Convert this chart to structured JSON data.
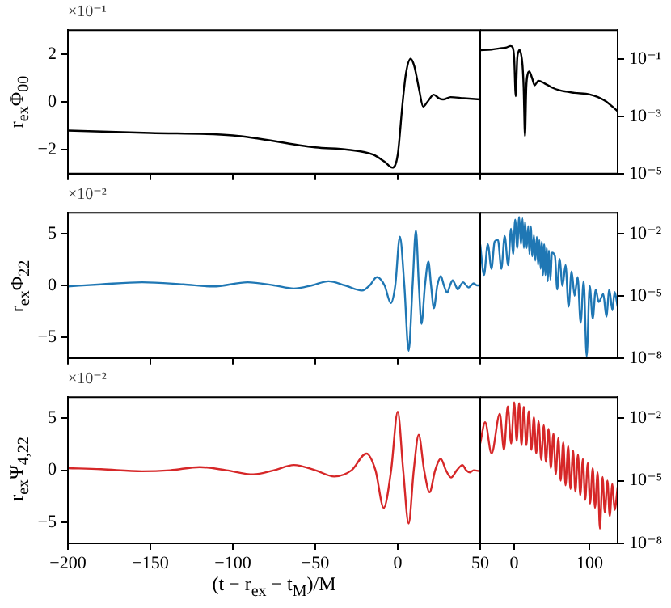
{
  "chart_data": [
    {
      "type": "line",
      "ylabel": "r$_{ex}$Φ$_{00}$",
      "annotations": [
        "×10⁻¹"
      ],
      "color": "#000000",
      "tick_labels": "y",
      "x": [
        -200,
        -150,
        -100,
        -50,
        -30,
        -15,
        -8,
        -3.2,
        0,
        3,
        5,
        7.8,
        10,
        13,
        15.4,
        18,
        21.8,
        25,
        27.5,
        32,
        40,
        50
      ],
      "values": [
        -1.2,
        -1.3,
        -1.4,
        -1.9,
        -2.0,
        -2.2,
        -2.5,
        -2.75,
        -2.2,
        0,
        1.2,
        1.8,
        1.5,
        0.5,
        -0.2,
        0,
        0.3,
        0.15,
        0.1,
        0.2,
        0.15,
        0.1
      ],
      "xlim": [
        -200,
        50
      ],
      "xticks": [
        {
          "value": -200,
          "label": null
        },
        {
          "value": -150,
          "label": null
        },
        {
          "value": -100,
          "label": null
        },
        {
          "value": -50,
          "label": null
        },
        {
          "value": 0,
          "label": null
        },
        {
          "value": 50,
          "label": null
        }
      ],
      "ylim": [
        -3,
        3
      ],
      "yticks": [
        {
          "value": -2,
          "label": "−2"
        },
        0,
        2
      ]
    },
    {
      "type": "line",
      "log": true,
      "color": "#000000",
      "tick_labels": "y",
      "x": [
        -45,
        -30,
        -20,
        -10,
        -5,
        -2,
        0,
        2,
        4,
        5.5,
        7,
        9,
        11,
        12.5,
        14.3,
        16,
        18,
        20,
        24,
        27,
        32,
        40,
        50,
        60,
        80,
        100,
        120,
        137
      ],
      "values": [
        0.2,
        0.21,
        0.23,
        0.25,
        0.28,
        0.25,
        0.1,
        0.005,
        0.1,
        0.17,
        0.2,
        0.15,
        0.06,
        0.01,
        0.0002,
        0.01,
        0.03,
        0.036,
        0.02,
        0.012,
        0.017,
        0.014,
        0.01,
        0.008,
        0.0065,
        0.0057,
        0.0035,
        0.0015
      ],
      "xlim": [
        -45,
        137
      ],
      "ylim": [
        1e-05,
        1
      ],
      "yticks": [
        {
          "value": 0.1,
          "label": "10⁻¹"
        },
        {
          "value": 0.001,
          "label": "10⁻³"
        },
        {
          "value": 1e-05,
          "label": "10⁻⁵"
        }
      ]
    },
    {
      "type": "line",
      "ylabel": "r$_{ex}$Φ$_{22}$",
      "annotations": [
        "×10⁻²"
      ],
      "color": "#1f77b4",
      "tick_labels": "y",
      "x": [
        -200,
        -180,
        -155,
        -130,
        -112,
        -91,
        -75,
        -63,
        -52,
        -42,
        -32,
        -21.6,
        -17,
        -12.6,
        -8,
        -4.2,
        -1.5,
        1.3,
        4,
        6.6,
        9,
        11,
        12.8,
        14.4,
        16.5,
        18.6,
        20.2,
        21.9,
        24,
        26.1,
        28,
        30,
        31.7,
        33.3,
        35,
        36.5,
        38,
        39.7,
        41.5,
        43,
        44.5,
        46,
        48,
        50
      ],
      "values": [
        -0.1,
        0.1,
        0.3,
        0.1,
        -0.1,
        0.3,
        0,
        -0.3,
        0,
        0.4,
        0,
        -0.5,
        0,
        0.8,
        0,
        -1.7,
        0,
        4.7,
        0,
        -6.3,
        0,
        5.3,
        0,
        -3.7,
        0,
        2.3,
        0,
        -2.2,
        0,
        0.9,
        0,
        -0.7,
        0,
        0.5,
        0,
        -0.4,
        0,
        0.3,
        0,
        -0.2,
        0,
        0.2,
        0,
        0
      ],
      "xlim": [
        -200,
        50
      ],
      "xticks": [
        {
          "value": -200,
          "label": null
        },
        {
          "value": -150,
          "label": null
        },
        {
          "value": -100,
          "label": null
        },
        {
          "value": -50,
          "label": null
        },
        {
          "value": 0,
          "label": null
        },
        {
          "value": 50,
          "label": null
        }
      ],
      "ylim": [
        -7,
        7
      ],
      "yticks": [
        {
          "value": -5,
          "label": "−5"
        },
        0,
        5
      ]
    },
    {
      "type": "line",
      "log": true,
      "color": "#1f77b4",
      "tick_labels": "y",
      "x": [
        -45,
        -40,
        -35,
        -30,
        -26,
        -21.6,
        -17,
        -12.6,
        -8,
        -4.2,
        -1.5,
        1.3,
        4,
        6.6,
        9,
        11,
        12.8,
        14.4,
        16.5,
        18.6,
        20.2,
        21.9,
        24,
        26.1,
        28,
        30,
        31.7,
        33.3,
        35,
        36.5,
        38,
        39.7,
        41.5,
        43,
        44.5,
        46,
        48,
        50,
        54,
        57,
        60,
        64,
        68,
        72,
        76,
        80,
        84,
        88,
        92,
        96,
        100,
        104,
        108,
        112,
        118,
        122,
        126,
        130,
        133,
        137
      ],
      "values": [
        0.003,
        0.0001,
        0.003,
        0.0002,
        0.004,
        0.005,
        0.0002,
        0.0075,
        0.0003,
        0.017,
        0.001,
        0.047,
        0.002,
        0.063,
        0.003,
        0.053,
        0.002,
        0.037,
        0.002,
        0.023,
        0.001,
        0.022,
        0.0008,
        0.0085,
        0.0005,
        0.007,
        0.0003,
        0.005,
        0.0002,
        0.004,
        0.0001,
        0.003,
        0.0001,
        0.002,
        5e-05,
        0.0015,
        6e-05,
        0.0012,
        0.0008,
        2e-05,
        0.0006,
        3e-05,
        0.0003,
        3e-06,
        0.00015,
        1e-05,
        8e-05,
        5e-07,
        5e-05,
        1.2e-08,
        3e-05,
        8e-07,
        2e-05,
        5e-06,
        1.2e-05,
        1e-06,
        2e-05,
        2e-06,
        1.5e-05,
        3e-06
      ],
      "xlim": [
        -45,
        137
      ],
      "ylim": [
        1e-08,
        0.1
      ],
      "yticks": [
        {
          "value": 0.01,
          "label": "10⁻²"
        },
        {
          "value": 1e-05,
          "label": "10⁻⁵"
        },
        {
          "value": 1e-08,
          "label": "10⁻⁸"
        }
      ]
    },
    {
      "type": "line",
      "ylabel": "r$_{ex}$Ψ$_{4,22}$",
      "xlabel": "(t − r$_{ex}$ − t$_{M}$)/M",
      "annotations": [
        "×10⁻²"
      ],
      "color": "#d62728",
      "x": [
        -200,
        -180,
        -155,
        -138,
        -120,
        -104,
        -87.6,
        -75,
        -63,
        -50,
        -38.5,
        -28,
        -19,
        -13.5,
        -8.5,
        -4,
        0,
        3.3,
        6.6,
        9.7,
        12.7,
        16,
        19.3,
        22.7,
        26.1,
        29.2,
        32.3,
        35.8,
        39.2,
        41.5,
        43.8,
        46,
        50
      ],
      "values": [
        0.2,
        0.1,
        -0.1,
        0,
        0.3,
        0,
        -0.4,
        0,
        0.5,
        0,
        -0.6,
        0,
        1.6,
        0,
        -3.6,
        0,
        5.6,
        0,
        -5.1,
        0,
        3.4,
        0,
        -2.1,
        0,
        1.1,
        0,
        -0.7,
        0,
        0.5,
        0,
        -0.2,
        0,
        -0.1
      ],
      "xlim": [
        -200,
        50
      ],
      "xticks": [
        {
          "value": -200,
          "label": "−200"
        },
        {
          "value": -150,
          "label": "−150"
        },
        {
          "value": -100,
          "label": "−100"
        },
        {
          "value": -50,
          "label": "−50"
        },
        0,
        50
      ],
      "ylim": [
        -7,
        7
      ],
      "yticks": [
        {
          "value": -5,
          "label": "−5"
        },
        0,
        5
      ]
    },
    {
      "type": "line",
      "log": true,
      "color": "#d62728",
      "x": [
        -45,
        -38.5,
        -30,
        -19,
        -13.5,
        -8.5,
        -4,
        0,
        3.3,
        6.6,
        9.7,
        12.7,
        16,
        19.3,
        22.7,
        26.1,
        29.2,
        32.3,
        35.8,
        39.2,
        42,
        45.5,
        48.5,
        52,
        55,
        58.5,
        61.5,
        65,
        68,
        71.5,
        74.5,
        78,
        81,
        84.5,
        87.5,
        91,
        94,
        97.5,
        100.5,
        104,
        107,
        110.5,
        113.5,
        117,
        120,
        123.5,
        126.5,
        130,
        133,
        137
      ],
      "values": [
        0.0006,
        0.0063,
        0.0002,
        0.016,
        0.0003,
        0.036,
        0.0006,
        0.056,
        0.0008,
        0.051,
        0.0005,
        0.034,
        0.0005,
        0.021,
        0.0003,
        0.011,
        0.0002,
        0.007,
        0.0001,
        0.0045,
        8e-05,
        0.003,
        4e-05,
        0.0018,
        2e-05,
        0.0011,
        1e-05,
        0.0007,
        6e-06,
        0.00045,
        4e-06,
        0.00028,
        3e-06,
        0.00018,
        2e-06,
        0.00011,
        1.2e-06,
        7e-05,
        8e-07,
        4e-05,
        5e-07,
        2.5e-05,
        5e-08,
        1.5e-05,
        3e-07,
        1e-05,
        2e-07,
        7e-06,
        4e-07,
        5e-06
      ],
      "xlim": [
        -45,
        137
      ],
      "xticks": [
        0,
        100
      ],
      "ylim": [
        1e-08,
        0.1
      ],
      "yticks": [
        {
          "value": 0.01,
          "label": "10⁻²"
        },
        {
          "value": 1e-05,
          "label": "10⁻⁵"
        },
        {
          "value": 1e-08,
          "label": "10⁻⁸"
        }
      ]
    }
  ]
}
